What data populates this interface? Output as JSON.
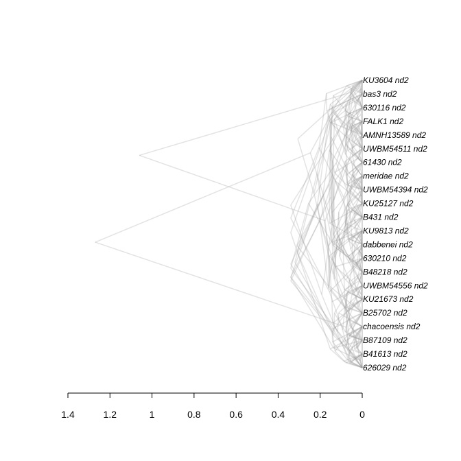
{
  "figure": {
    "type": "densitree",
    "edge_color": "#9a9a9a",
    "tips": [
      "KU3604 nd2",
      "bas3 nd2",
      "630116 nd2",
      "FALK1 nd2",
      "AMNH13589 nd2",
      "UWBM54511 nd2",
      "61430 nd2",
      "meridae nd2",
      "UWBM54394 nd2",
      "KU25127 nd2",
      "B431 nd2",
      "KU9813 nd2",
      "dabbenei nd2",
      "630210 nd2",
      "B48218 nd2",
      "UWBM54556 nd2",
      "KU21673 nd2",
      "B25702 nd2",
      "chacoensis nd2",
      "B87109 nd2",
      "B41613 nd2",
      "626029 nd2"
    ],
    "axis": {
      "min": 0,
      "max": 1.4,
      "reversed": true,
      "ticks": [
        1.4,
        1.2,
        1,
        0.8,
        0.6,
        0.4,
        0.2,
        0
      ],
      "tick_labels": [
        "1.4",
        "1.2",
        "1",
        "0.8",
        "0.6",
        "0.4",
        "0.2",
        "0"
      ]
    },
    "root_heights": [
      1.27,
      1.06,
      0.32
    ]
  }
}
